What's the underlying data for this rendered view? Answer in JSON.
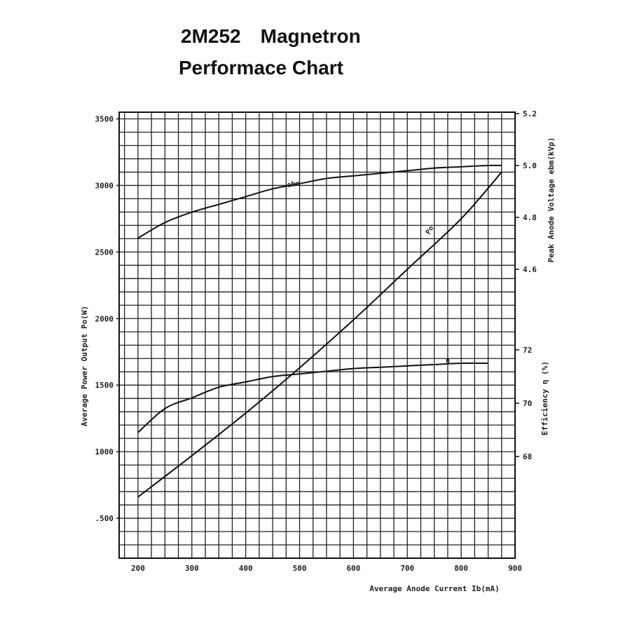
{
  "header": {
    "model": "2M252",
    "device": "Magnetron",
    "subtitle": "Performace Chart"
  },
  "chart_data": {
    "type": "line",
    "title": "2M252 Magnetron Performace Chart",
    "xlabel": "Average Anode Current  Ib(mA)",
    "ylabel_left": "Average Power Output  Po(W)",
    "ylabel_right_top": "Peak Anode Voltage ebm(kVp)",
    "ylabel_right_bottom": "Efficiency η (%)",
    "xlim": [
      165,
      900
    ],
    "ylim_left": [
      200,
      3550
    ],
    "x_ticks": [
      {
        "v": 200,
        "label": "200"
      },
      {
        "v": 300,
        "label": "300"
      },
      {
        "v": 400,
        "label": "400"
      },
      {
        "v": 500,
        "label": "500"
      },
      {
        "v": 600,
        "label": "600"
      },
      {
        "v": 700,
        "label": "700"
      },
      {
        "v": 800,
        "label": "800"
      },
      {
        "v": 900,
        "label": "900"
      }
    ],
    "y_left_ticks": [
      {
        "v": 3500,
        "label": "3500"
      },
      {
        "v": 3000,
        "label": "3000"
      },
      {
        "v": 2500,
        "label": "2500"
      },
      {
        "v": 2000,
        "label": "2000"
      },
      {
        "v": 1500,
        "label": "1500"
      },
      {
        "v": 1000,
        "label": "1000"
      },
      {
        "v": 500,
        "label": ".500"
      }
    ],
    "y_right_voltage_ticks": [
      {
        "v": 5.2,
        "label": "5.2"
      },
      {
        "v": 5.0,
        "label": "5.0"
      },
      {
        "v": 4.8,
        "label": "4.8"
      },
      {
        "v": 4.6,
        "label": "4.6"
      }
    ],
    "y_right_efficiency_ticks": [
      {
        "v": 72,
        "label": "72"
      },
      {
        "v": 70,
        "label": "70"
      },
      {
        "v": 68,
        "label": "68"
      }
    ],
    "grid": true,
    "series": [
      {
        "name": "ebm",
        "axis": "voltage",
        "x": [
          200,
          250,
          300,
          350,
          400,
          450,
          500,
          550,
          600,
          650,
          700,
          750,
          800,
          850,
          875
        ],
        "values": [
          4.72,
          4.78,
          4.82,
          4.85,
          4.88,
          4.91,
          4.93,
          4.95,
          4.96,
          4.97,
          4.98,
          4.99,
          4.995,
          5.0,
          5.0
        ]
      },
      {
        "name": "Po",
        "axis": "power",
        "x": [
          200,
          300,
          400,
          500,
          600,
          700,
          800,
          875
        ],
        "values": [
          660,
          970,
          1290,
          1630,
          1990,
          2370,
          2750,
          3100
        ]
      },
      {
        "name": "η",
        "axis": "efficiency",
        "x": [
          200,
          250,
          300,
          350,
          400,
          450,
          500,
          550,
          600,
          650,
          700,
          750,
          800,
          850
        ],
        "values": [
          68.9,
          69.8,
          70.2,
          70.6,
          70.8,
          71.0,
          71.1,
          71.2,
          71.3,
          71.35,
          71.4,
          71.45,
          71.5,
          71.5
        ]
      }
    ]
  }
}
